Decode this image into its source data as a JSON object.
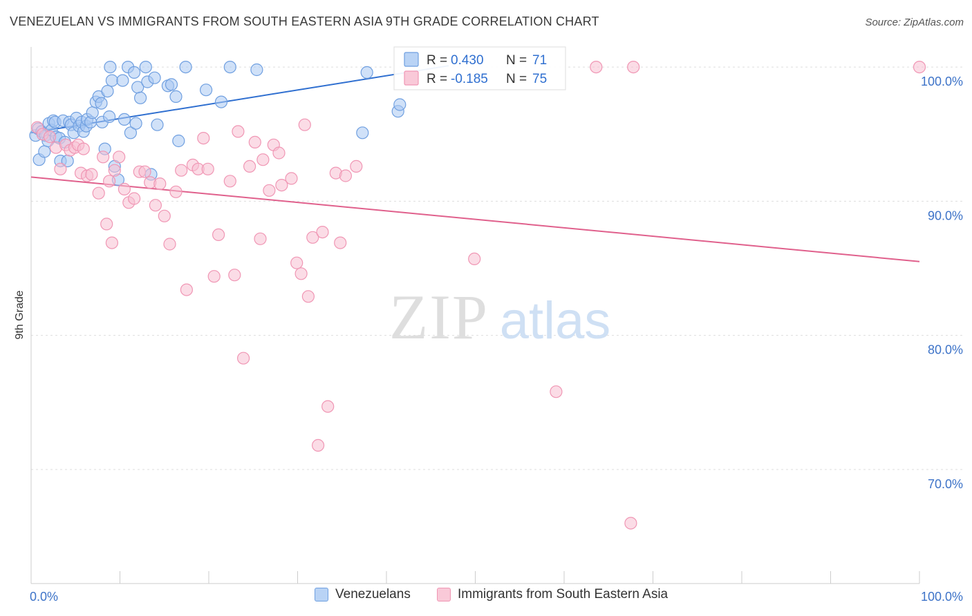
{
  "title": "VENEZUELAN VS IMMIGRANTS FROM SOUTH EASTERN ASIA 9TH GRADE CORRELATION CHART",
  "source": "Source: ZipAtlas.com",
  "watermark": {
    "zip": "ZIP",
    "atlas": "atlas"
  },
  "chart_data": {
    "type": "scatter",
    "ylabel": "9th Grade",
    "xlim": [
      0,
      100
    ],
    "ylim": [
      61.5,
      101.5
    ],
    "x_tick_labels": [
      {
        "value": 0,
        "label": "0.0%"
      },
      {
        "value": 100,
        "label": "100.0%"
      }
    ],
    "y_ticks": [
      {
        "value": 100,
        "label": "100.0%"
      },
      {
        "value": 90,
        "label": "90.0%"
      },
      {
        "value": 80,
        "label": "80.0%"
      },
      {
        "value": 70,
        "label": "70.0%"
      }
    ],
    "stats_legend": [
      {
        "r_label": "R =",
        "r_value": "0.430",
        "n_label": "N =",
        "n_value": "71"
      },
      {
        "r_label": "R =",
        "r_value": "-0.185",
        "n_label": "N =",
        "n_value": "75"
      }
    ],
    "series": [
      {
        "name": "Venezuelans",
        "color": "#6f9fe0",
        "fill": "#aac8f2",
        "line_color": "#2f6fd0",
        "trend": {
          "x0": 0,
          "y0": 95.1,
          "x1": 47,
          "y1": 100.1
        },
        "points": [
          [
            0.5,
            94.9
          ],
          [
            0.8,
            95.4
          ],
          [
            0.9,
            93.1
          ],
          [
            1.2,
            95.2
          ],
          [
            1.5,
            93.7
          ],
          [
            1.6,
            94.9
          ],
          [
            1.9,
            94.5
          ],
          [
            2.0,
            95.8
          ],
          [
            2.3,
            95.3
          ],
          [
            2.5,
            96.0
          ],
          [
            2.7,
            95.9
          ],
          [
            2.8,
            94.8
          ],
          [
            3.2,
            94.7
          ],
          [
            3.3,
            93.0
          ],
          [
            3.6,
            96.0
          ],
          [
            3.8,
            94.4
          ],
          [
            4.1,
            93.0
          ],
          [
            4.3,
            95.9
          ],
          [
            4.5,
            95.7
          ],
          [
            4.8,
            95.1
          ],
          [
            5.1,
            96.2
          ],
          [
            5.4,
            95.6
          ],
          [
            5.7,
            95.9
          ],
          [
            5.9,
            95.2
          ],
          [
            6.2,
            95.6
          ],
          [
            6.3,
            96.1
          ],
          [
            6.7,
            95.9
          ],
          [
            6.9,
            96.6
          ],
          [
            7.3,
            97.4
          ],
          [
            7.6,
            97.8
          ],
          [
            7.9,
            97.3
          ],
          [
            8.0,
            95.9
          ],
          [
            8.3,
            93.9
          ],
          [
            8.6,
            98.2
          ],
          [
            8.8,
            96.3
          ],
          [
            8.9,
            100.0
          ],
          [
            9.1,
            99.0
          ],
          [
            9.4,
            92.6
          ],
          [
            9.8,
            91.6
          ],
          [
            10.3,
            99.0
          ],
          [
            10.5,
            96.1
          ],
          [
            10.9,
            100.0
          ],
          [
            11.2,
            95.1
          ],
          [
            11.6,
            99.6
          ],
          [
            11.8,
            95.8
          ],
          [
            12.0,
            98.5
          ],
          [
            12.3,
            97.7
          ],
          [
            12.9,
            100.0
          ],
          [
            13.1,
            98.9
          ],
          [
            13.5,
            92.0
          ],
          [
            13.9,
            99.2
          ],
          [
            14.2,
            95.7
          ],
          [
            15.4,
            98.6
          ],
          [
            15.8,
            98.7
          ],
          [
            16.3,
            97.8
          ],
          [
            16.6,
            94.5
          ],
          [
            17.4,
            100.0
          ],
          [
            19.7,
            98.3
          ],
          [
            21.4,
            97.4
          ],
          [
            22.4,
            100.0
          ],
          [
            25.4,
            99.8
          ],
          [
            37.3,
            95.1
          ],
          [
            37.8,
            99.6
          ],
          [
            41.3,
            96.7
          ],
          [
            41.5,
            97.2
          ]
        ]
      },
      {
        "name": "Immigrants from South Eastern Asia",
        "color": "#f096b4",
        "fill": "#f8bfd1",
        "line_color": "#e0608c",
        "trend": {
          "x0": 0,
          "y0": 91.8,
          "x1": 100,
          "y1": 85.5
        },
        "points": [
          [
            0.7,
            95.5
          ],
          [
            1.3,
            95.0
          ],
          [
            2.1,
            94.8
          ],
          [
            2.8,
            94.0
          ],
          [
            3.3,
            92.4
          ],
          [
            3.9,
            94.2
          ],
          [
            4.4,
            93.8
          ],
          [
            4.9,
            94.0
          ],
          [
            5.3,
            94.2
          ],
          [
            5.6,
            92.1
          ],
          [
            5.9,
            93.9
          ],
          [
            6.3,
            91.9
          ],
          [
            6.8,
            92.0
          ],
          [
            7.6,
            90.6
          ],
          [
            8.1,
            93.3
          ],
          [
            8.5,
            88.3
          ],
          [
            8.8,
            91.5
          ],
          [
            9.1,
            86.9
          ],
          [
            9.4,
            92.3
          ],
          [
            9.9,
            93.3
          ],
          [
            10.5,
            90.9
          ],
          [
            11.0,
            89.9
          ],
          [
            11.6,
            90.2
          ],
          [
            12.2,
            92.2
          ],
          [
            12.8,
            92.2
          ],
          [
            13.4,
            91.4
          ],
          [
            14.0,
            89.7
          ],
          [
            14.5,
            91.3
          ],
          [
            15.0,
            88.9
          ],
          [
            15.6,
            86.8
          ],
          [
            16.3,
            90.7
          ],
          [
            16.9,
            92.3
          ],
          [
            17.5,
            83.4
          ],
          [
            18.2,
            92.7
          ],
          [
            18.8,
            92.4
          ],
          [
            19.4,
            94.7
          ],
          [
            19.9,
            92.4
          ],
          [
            20.6,
            84.4
          ],
          [
            21.1,
            87.5
          ],
          [
            22.4,
            91.5
          ],
          [
            22.9,
            84.5
          ],
          [
            23.3,
            95.2
          ],
          [
            23.9,
            78.3
          ],
          [
            24.6,
            92.6
          ],
          [
            25.2,
            94.4
          ],
          [
            25.8,
            87.2
          ],
          [
            26.1,
            93.1
          ],
          [
            26.8,
            90.8
          ],
          [
            27.3,
            94.2
          ],
          [
            27.9,
            93.6
          ],
          [
            28.2,
            91.2
          ],
          [
            29.3,
            91.7
          ],
          [
            29.9,
            85.4
          ],
          [
            30.4,
            84.6
          ],
          [
            30.8,
            95.7
          ],
          [
            31.2,
            82.9
          ],
          [
            31.7,
            87.3
          ],
          [
            32.3,
            71.8
          ],
          [
            32.8,
            87.7
          ],
          [
            33.4,
            74.7
          ],
          [
            34.3,
            92.1
          ],
          [
            34.8,
            86.9
          ],
          [
            35.4,
            91.9
          ],
          [
            36.6,
            92.6
          ],
          [
            49.9,
            85.7
          ],
          [
            59.1,
            75.8
          ],
          [
            63.6,
            100.0
          ],
          [
            67.5,
            66.0
          ],
          [
            67.8,
            100.0
          ],
          [
            100.0,
            100.0
          ]
        ]
      }
    ]
  }
}
